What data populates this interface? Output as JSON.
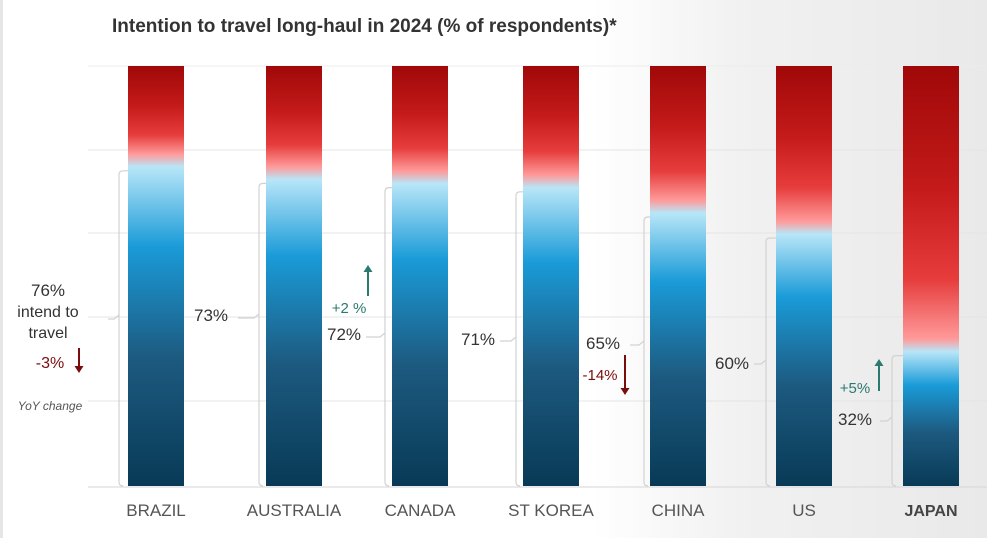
{
  "chart_data": {
    "type": "bar",
    "title": "Intention to travel long-haul in 2024 (% of respondents)*",
    "categories": [
      "BRAZIL",
      "AUSTRALIA",
      "CANADA",
      "ST KOREA",
      "CHINA",
      "US",
      "JAPAN"
    ],
    "values": [
      76,
      73,
      72,
      71,
      65,
      60,
      32
    ],
    "value_labels": [
      "76%",
      "73%",
      "72%",
      "71%",
      "65%",
      "60%",
      "32%"
    ],
    "yoy_changes": [
      {
        "category": "BRAZIL",
        "label": "-3%",
        "direction": "down"
      },
      {
        "category": "AUSTRALIA",
        "label": "+2 %",
        "direction": "up"
      },
      {
        "category": "CHINA",
        "label": "-14%",
        "direction": "down"
      },
      {
        "category": "JAPAN",
        "label": "+5%",
        "direction": "up"
      }
    ],
    "ylim": [
      0,
      100
    ],
    "xlabel": "",
    "ylabel": "",
    "legend_text": {
      "value": "76%",
      "line1": "intend to",
      "line2": "travel",
      "change": "-3%",
      "note": "YoY change"
    },
    "grid": true
  },
  "colors": {
    "red_dark": "#a00808",
    "red_mid": "#e63c3c",
    "red_light": "#ff9a9a",
    "blue_light": "#b8e6f8",
    "blue_mid": "#1a9bd8",
    "blue_dark": "#1d5a80",
    "navy": "#083a56",
    "down_arrow": "#7a0c0c",
    "up_arrow": "#2a7a70",
    "text": "#333333"
  }
}
